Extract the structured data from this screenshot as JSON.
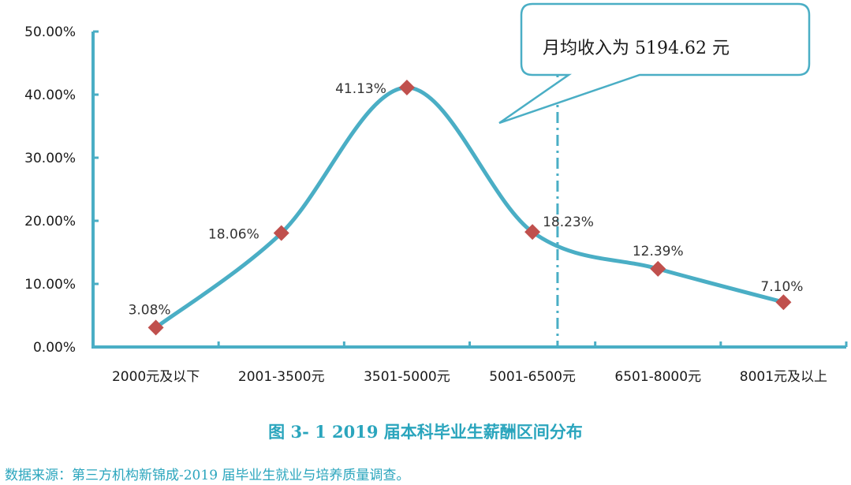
{
  "chart_data": {
    "type": "line",
    "categories": [
      "2000元及以下",
      "2001-3500元",
      "3501-5000元",
      "5001-6500元",
      "6501-8000元",
      "8001元及以上"
    ],
    "values": [
      3.08,
      18.06,
      41.13,
      18.23,
      12.39,
      7.1
    ],
    "data_labels": [
      "3.08%",
      "18.06%",
      "41.13%",
      "18.23%",
      "12.39%",
      "7.10%"
    ],
    "y_ticks": [
      "0.00%",
      "10.00%",
      "20.00%",
      "30.00%",
      "40.00%",
      "50.00%"
    ],
    "ylim": [
      0,
      50
    ],
    "mean_marker_position": 3.7,
    "callout": "月均收入为 5194.62 元",
    "line_color": "#4aaec5",
    "marker_color": "#c0504d",
    "axis_color": "#4aaec5"
  },
  "caption": "图 3- 1    2019 届本科毕业生薪酬区间分布",
  "source": "数据来源：第三方机构新锦成-2019 届毕业生就业与培养质量调查。"
}
